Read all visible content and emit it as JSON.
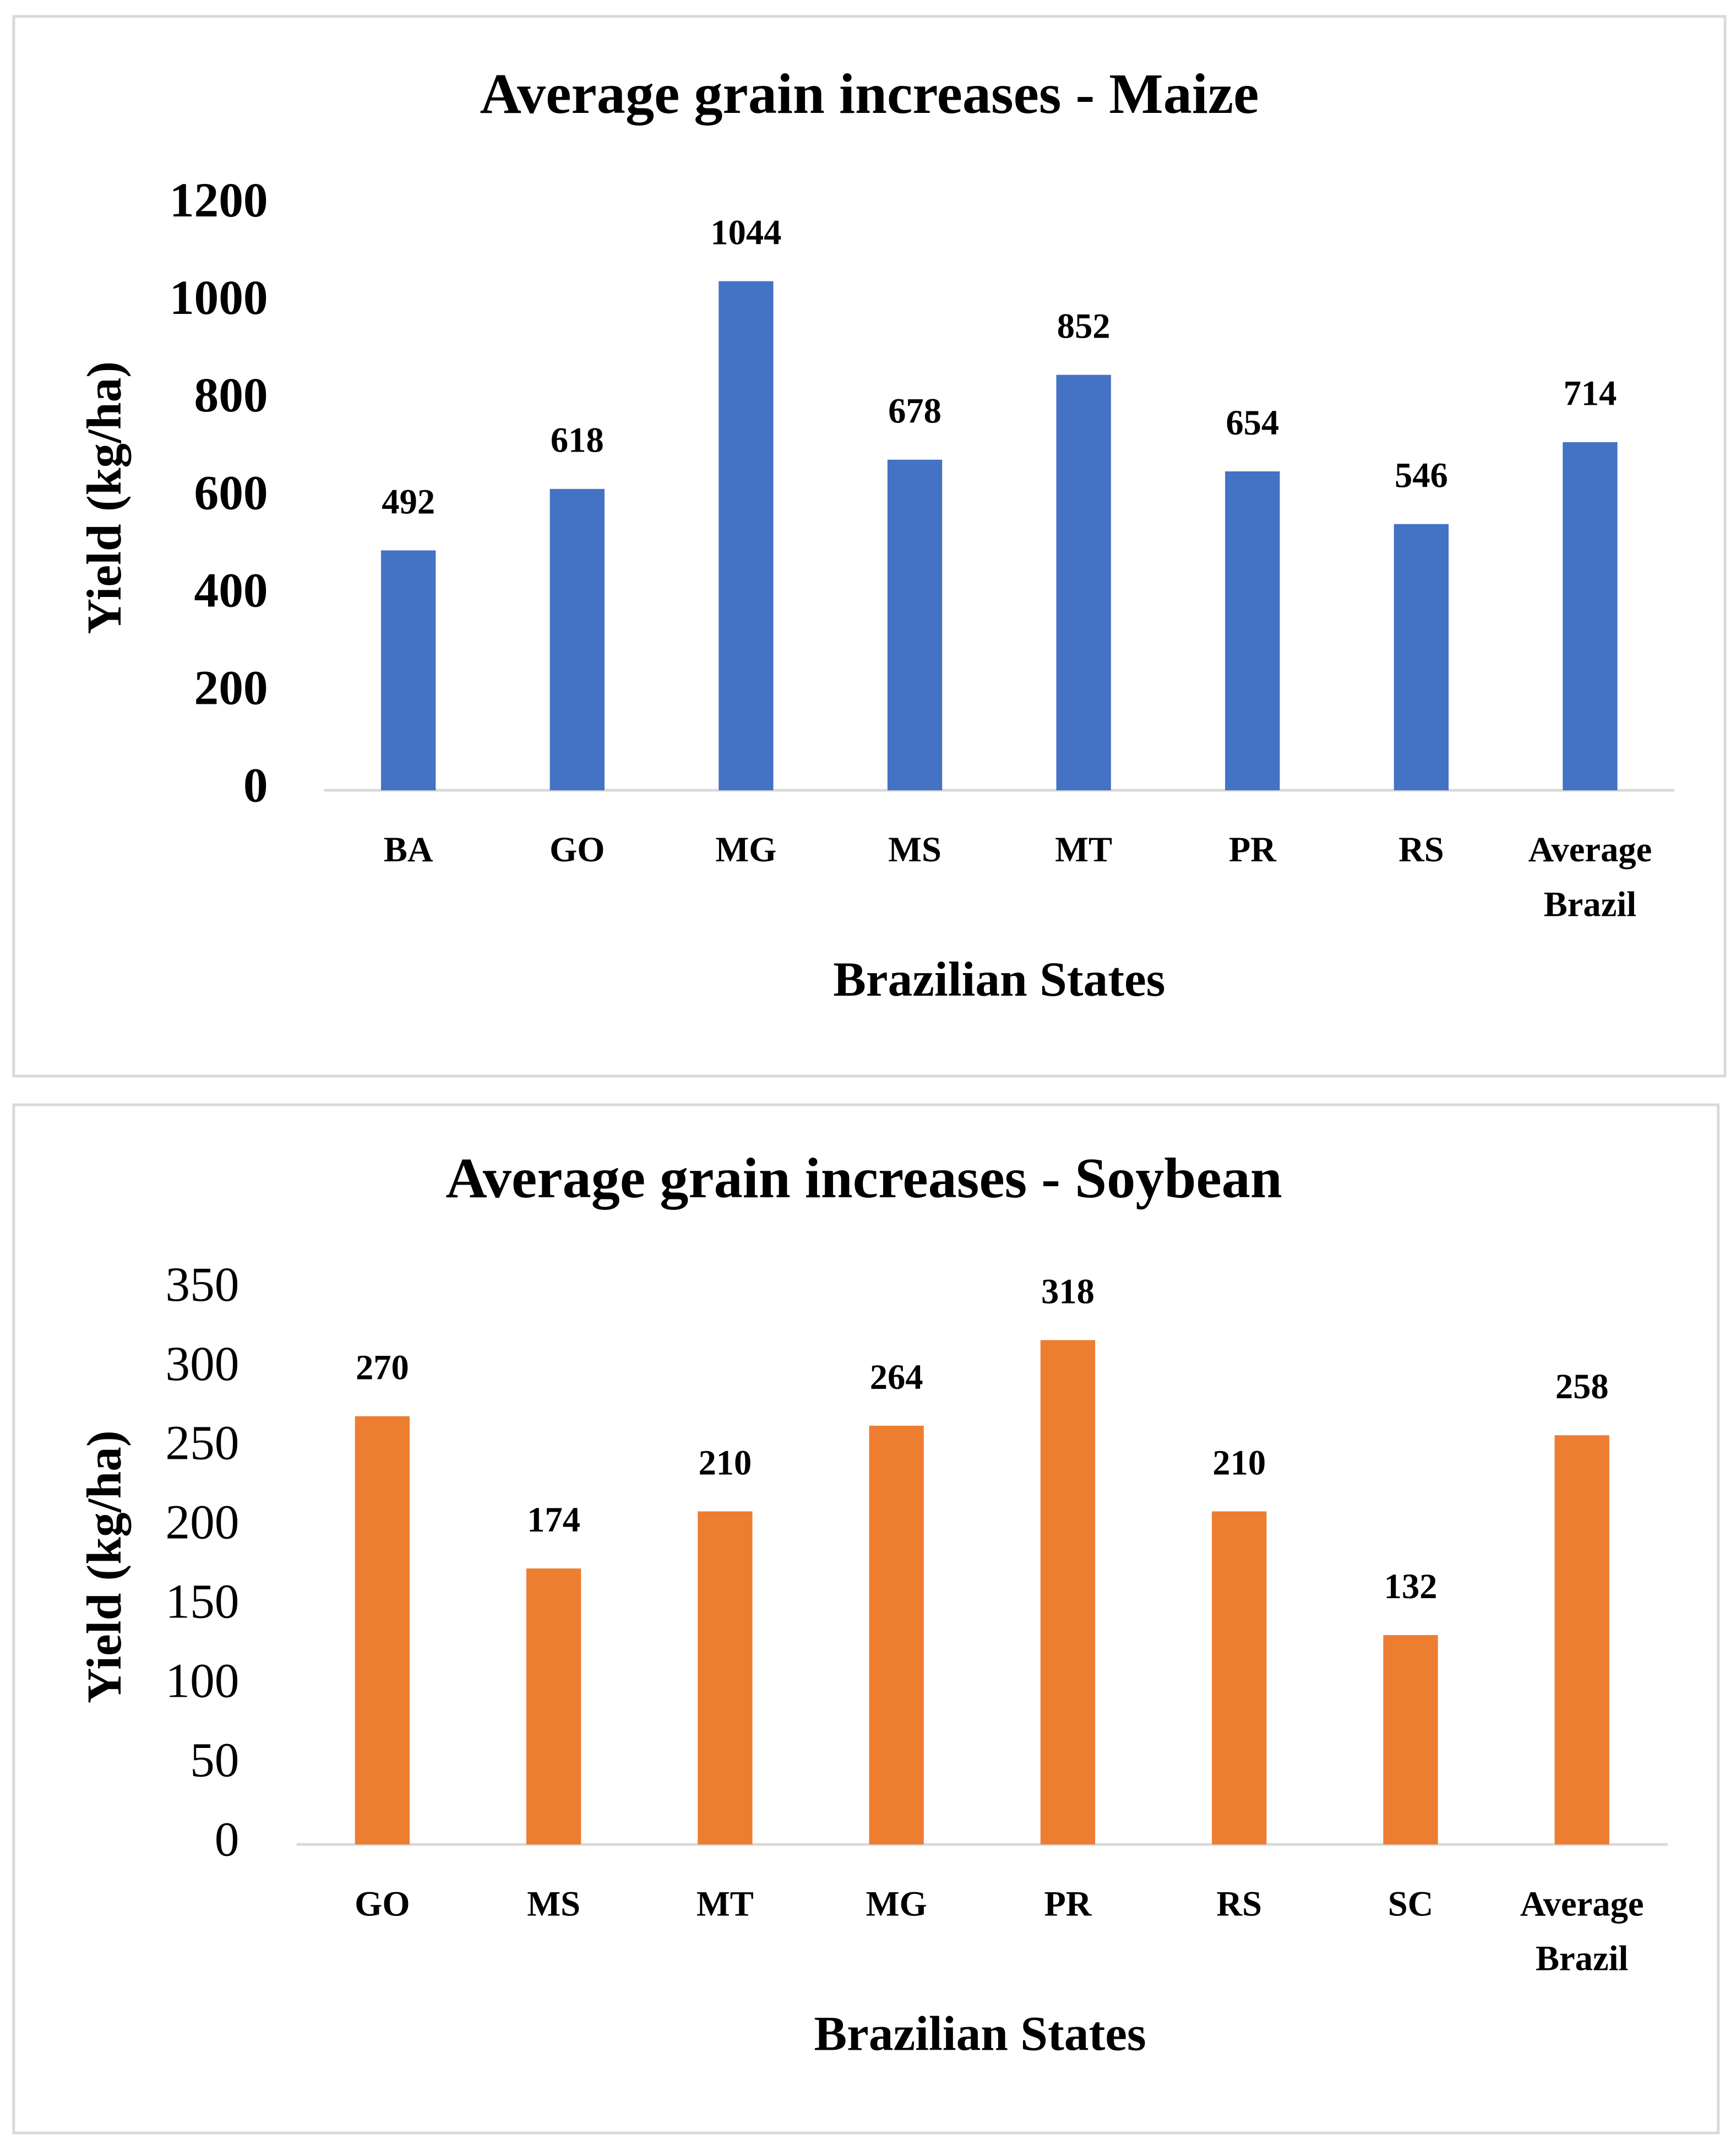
{
  "chart_data": [
    {
      "type": "bar",
      "title": "Average grain increases - Maize",
      "x_label": "Brazilian States",
      "y_label": "Yield (kg/ha)",
      "categories": [
        "BA",
        "GO",
        "MG",
        "MS",
        "MT",
        "PR",
        "RS",
        "Average Brazil"
      ],
      "values": [
        492,
        618,
        1044,
        678,
        852,
        654,
        546,
        714
      ],
      "color": "#4472c4",
      "ylim": [
        0,
        1200
      ],
      "yticks": [
        0,
        200,
        400,
        600,
        800,
        1000,
        1200
      ],
      "grid": false
    },
    {
      "type": "bar",
      "title": "Average grain increases - Soybean",
      "x_label": "Brazilian States",
      "y_label": "Yield (kg/ha)",
      "categories": [
        "GO",
        "MS",
        "MT",
        "MG",
        "PR",
        "RS",
        "SC",
        "Average Brazil"
      ],
      "values": [
        270,
        174,
        210,
        264,
        318,
        210,
        132,
        258
      ],
      "color": "#ed7d31",
      "ylim": [
        0,
        350
      ],
      "yticks": [
        0,
        50,
        100,
        150,
        200,
        250,
        300,
        350
      ],
      "grid": false
    }
  ]
}
